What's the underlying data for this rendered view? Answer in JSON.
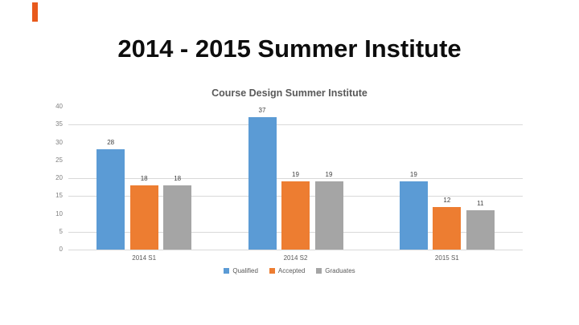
{
  "slide": {
    "title": "2014 - 2015 Summer Institute",
    "accent_mark_color": "#e8591c"
  },
  "chart_data": {
    "type": "bar",
    "title": "Course Design Summer Institute",
    "categories": [
      "2014 S1",
      "2014 S2",
      "2015 S1"
    ],
    "series": [
      {
        "name": "Qualified",
        "color": "#5b9bd5",
        "values": [
          28,
          37,
          19
        ]
      },
      {
        "name": "Accepted",
        "color": "#ed7d31",
        "values": [
          18,
          19,
          12
        ]
      },
      {
        "name": "Graduates",
        "color": "#a5a5a5",
        "values": [
          18,
          19,
          11
        ]
      }
    ],
    "xlabel": "",
    "ylabel": "",
    "ylim": [
      0,
      40
    ],
    "yticks": [
      0,
      5,
      10,
      15,
      20,
      25,
      30,
      35,
      40
    ],
    "visible_gridlines": [
      5,
      15,
      20,
      35
    ],
    "grid": true,
    "legend_position": "bottom",
    "data_labels": true
  }
}
